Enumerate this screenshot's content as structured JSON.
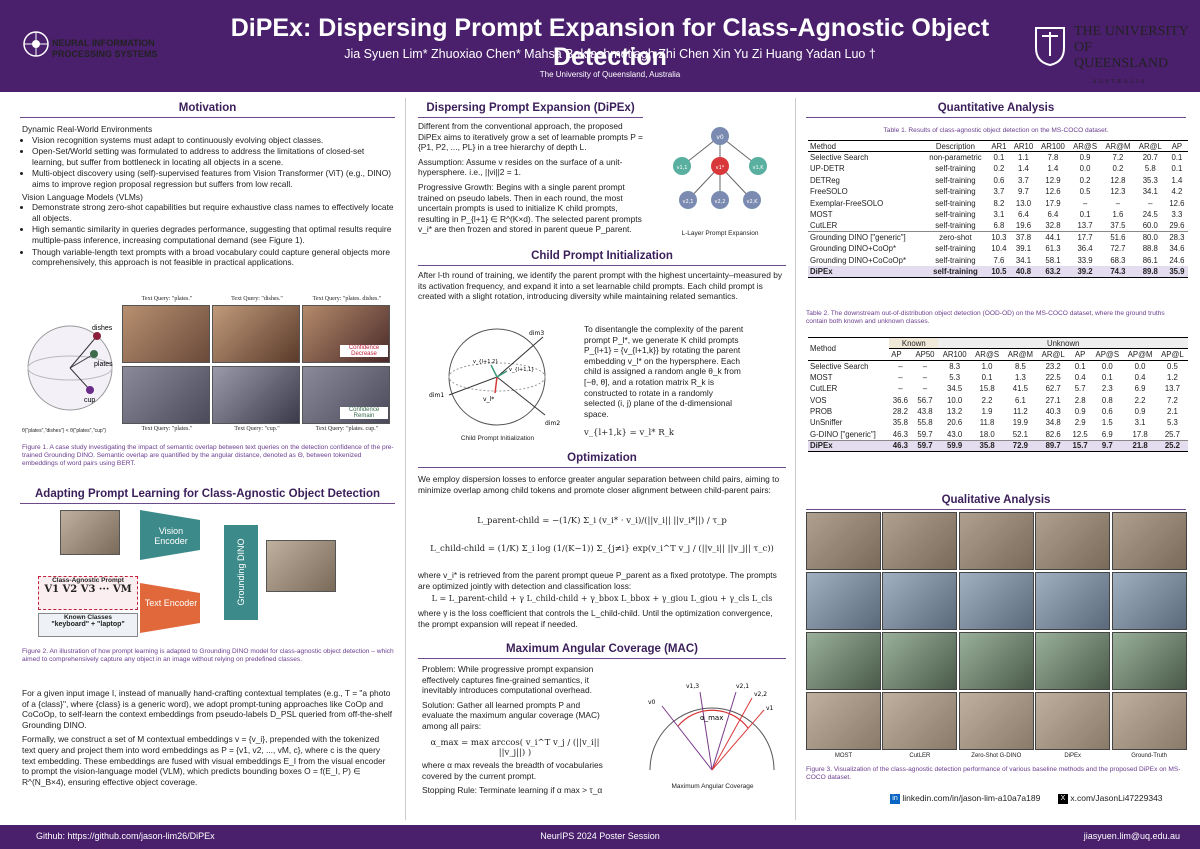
{
  "header": {
    "title": "DiPEx: Dispersing Prompt Expansion for Class-Agnostic Object Detection",
    "authors": "Jia Syuen Lim*  Zhuoxiao Chen*  Mahsa Baktashmotlagh  Zhi Chen  Xin Yu  Zi Huang  Yadan Luo †",
    "affiliation": "The University of Queensland, Australia",
    "logo_left": "NEURAL INFORMATION PROCESSING SYSTEMS",
    "logo_right": "THE UNIVERSITY OF QUEENSLAND",
    "logo_right_sub": "AUSTRALIA"
  },
  "motivation": {
    "title": "Motivation",
    "h1": "Dynamic Real-World Environments",
    "b1": "Vision recognition systems must adapt to continuously evolving object classes.",
    "b2": "Open-Set/World setting was formulated to address to address the limitations of closed-set learning, but suffer from bottleneck in locating all objects in a scene.",
    "b3": "Multi-object discovery using (self)-supervised features from Vision Transformer (ViT) (e.g., DINO) aims to improve region proposal regression but suffers from low recall.",
    "h2": "Vision Language Models (VLMs)",
    "b4": "Demonstrate strong zero-shot capabilities but require exhaustive class names to effectively locate all objects.",
    "b5": "High semantic similarity in queries degrades performance, suggesting that optimal results require multiple-pass inference, increasing computational demand (see Figure 1).",
    "b6": "Though variable-length text prompts with a broad vocabulary could capture general objects more comprehensively, this approach is not feasible in practical applications.",
    "fig_dishes": "dishes",
    "fig_plates": "plates",
    "fig_cup": "cup",
    "fig_theta": "θ(\"plates\",\"dishes\") < θ(\"plates\",\"cup\")",
    "q1": "Text Query: \"plates.\"",
    "q2": "Text Query: \"dishes.\"",
    "q3": "Text Query: \"plates. dishes.\"",
    "q4": "Text Query: \"plates.\"",
    "q5": "Text Query: \"cup.\"",
    "q6": "Text Query: \"plates. cup.\"",
    "conf_dec": "Confidence Decrease",
    "conf_rem": "Confidence Remain",
    "caption": "Figure 1. A case study investigating the impact of semantic overlap between text queries on the detection confidence of the pre-trained Grounding DINO. Semantic overlap are quantified by the angular distance, denoted as Θ, between tokenized embeddings of word pairs using BERT."
  },
  "adapting": {
    "title": "Adapting Prompt Learning for Class-Agnostic Object Detection",
    "vision_encoder": "Vision Encoder",
    "text_encoder": "Text Encoder",
    "grounding": "Grounding DINO",
    "cap_title": "Class-Agnostic Prompt",
    "tokens": "V1  V2  V3  ···  VM",
    "known": "Known Classes",
    "known_ex": "\"keyboard\" + \"laptop\"",
    "caption": "Figure 2. An illustration of how prompt learning is adapted to Grounding DINO model for class-agnostic object detection – which aimed to comprehensively capture any object in an image without relying on predefined classes.",
    "p1": "For a given input image I, instead of manually hand-crafting contextual templates (e.g., T = \"a photo of a {class}\", where {class} is a generic word), we adopt prompt-tuning approaches like CoOp and CoCoOp, to self-learn the context embeddings from pseudo-labels D_PSL queried from off-the-shelf Grounding DINO.",
    "p2": "Formally, we construct a set of M contextual embeddings v = {v_i}, prepended with the tokenized text query and project them into word embeddings as P = {v1, v2, ..., vM, c}, where c is the query text embedding. These embeddings are fused with visual embeddings E_I from the visual encoder to prompt the vision-language model (VLM), which predicts bounding boxes O = f(E_I, P) ∈ R^(N_B×4), ensuring effective object coverage."
  },
  "dispersing": {
    "title": "Dispersing Prompt Expansion (DiPEx)",
    "p1": "Different from the conventional approach, the proposed DiPEx aims to iteratively grow a set of learnable prompts P = {P1, P2, ..., PL} in a tree hierarchy of depth L.",
    "p2": "Assumption: Assume v resides on the surface of a unit-hypersphere. i.e., ||vi||2 = 1.",
    "p3": "Progressive Growth: Begins with a single parent prompt trained on pseudo labels. Then in each round, the most uncertain prompts is used to initialize K child prompts, resulting in P_{l+1} ∈ R^(K×d). The selected parent prompts v_i* are then frozen and stored in parent queue P_parent.",
    "fig_caption": "L-Layer Prompt Expansion",
    "n0": "v0",
    "n1": "v1,1",
    "n2": "v1*",
    "n3": "v1,K",
    "n4": "v2,1",
    "n5": "v2,2",
    "n6": "v2,K"
  },
  "child": {
    "title": "Child Prompt Initialization",
    "p1": "After l-th round of training, we identify the parent prompt with the highest uncertainty–measured by its activation frequency, and expand it into a set learnable child prompts. Each child prompt is created with a slight rotation, introducing diversity while maintaining related semantics.",
    "p2": "To disentangle the complexity of the parent prompt P_l*, we generate K child prompts P_{l+1} = {v_{l+1,k}} by rotating the parent embedding v_l* on the hypersphere. Each child is assigned a random angle θ_k from [−θ, θ], and a rotation matrix R_k is constructed to rotate in a randomly selected (i, j) plane of the d-dimensional space.",
    "eq": "v_{l+1,k} = v_l* R_k",
    "fig_caption": "Child Prompt Initialization",
    "dim1": "dim1",
    "dim2": "dim2",
    "dim3": "dim3",
    "vi": "v_l*",
    "vc1": "v_{l+1,2}",
    "vc2": "v_{l+1,1}"
  },
  "optimization": {
    "title": "Optimization",
    "p1": "We employ dispersion losses to enforce greater angular separation between child pairs, aiming to minimize overlap among child tokens and promote closer alignment between child-parent pairs:",
    "eq1": "L_parent-child = −(1/K) Σ_i (v_i* · v_i)/(||v_i|| ||v_i*||) / τ_p",
    "eq2": "L_child-child = (1/K) Σ_i log (1/(K−1)) Σ_{j≠i} exp(v_i^T v_j / (||v_i|| ||v_j|| τ_c))",
    "p2": "where v_i* is retrieved from the parent prompt queue P_parent as a fixed prototype. The prompts are optimized jointly with detection and classification loss:",
    "eq3": "L = L_parent-child + γ L_child-child + γ_bbox L_bbox + γ_giou L_giou + γ_cls L_cls",
    "p3": "where γ is the loss coefficient that controls the L_child-child. Until the optimization convergence, the prompt expansion will repeat if needed."
  },
  "mac": {
    "title": "Maximum Angular Coverage (MAC)",
    "p1": "Problem: While progressive prompt expansion effectively captures fine-grained semantics, it inevitably introduces computational overhead.",
    "p2": "Solution: Gather all learned prompts P and evaluate the maximum angular coverage (MAC) among all pairs:",
    "eq": "α_max = max arccos( v_i^T v_j / (||v_i|| ||v_j||) )",
    "p3": "where α max reveals the breadth of vocabularies covered by the current prompt.",
    "p4": "Stopping Rule: Terminate learning if α max > τ_α",
    "fig_caption": "Maximum Angular Coverage",
    "amax": "α_max",
    "v0": "v0",
    "v13": "v1,3",
    "v21": "v2,1",
    "v22": "v2,2",
    "v1": "v1"
  },
  "quant": {
    "title": "Quantitative Analysis",
    "t1_caption": "Table 1. Results of class-agnostic object detection on the MS-COCO dataset.",
    "t1_headers": [
      "Method",
      "Description",
      "AR1",
      "AR10",
      "AR100",
      "AR@S",
      "AR@M",
      "AR@L",
      "AP"
    ],
    "t1_rows": [
      [
        "Selective Search",
        "non-parametric",
        "0.1",
        "1.1",
        "7.8",
        "0.9",
        "7.2",
        "20.7",
        "0.1"
      ],
      [
        "UP-DETR",
        "self-training",
        "0.2",
        "1.4",
        "1.4",
        "0.0",
        "0.2",
        "5.8",
        "0.1"
      ],
      [
        "DETReg",
        "self-training",
        "0.6",
        "3.7",
        "12.9",
        "0.2",
        "12.8",
        "35.3",
        "1.4"
      ],
      [
        "FreeSOLO",
        "self-training",
        "3.7",
        "9.7",
        "12.6",
        "0.5",
        "12.3",
        "34.1",
        "4.2"
      ],
      [
        "Exemplar-FreeSOLO",
        "self-training",
        "8.2",
        "13.0",
        "17.9",
        "–",
        "–",
        "–",
        "12.6"
      ],
      [
        "MOST",
        "self-training",
        "3.1",
        "6.4",
        "6.4",
        "0.1",
        "1.6",
        "24.5",
        "3.3"
      ],
      [
        "CutLER",
        "self-training",
        "6.8",
        "19.6",
        "32.8",
        "13.7",
        "37.5",
        "60.0",
        "29.6"
      ],
      [
        "Grounding DINO [\"generic\"]",
        "zero-shot",
        "10.3",
        "37.8",
        "44.1",
        "17.7",
        "51.6",
        "80.0",
        "28.3"
      ],
      [
        "Grounding DINO+CoOp*",
        "self-training",
        "10.4",
        "39.1",
        "61.3",
        "36.4",
        "72.7",
        "88.8",
        "34.6"
      ],
      [
        "Grounding DINO+CoCoOp*",
        "self-training",
        "7.6",
        "34.1",
        "58.1",
        "33.9",
        "68.3",
        "86.1",
        "24.6"
      ],
      [
        "DiPEx",
        "self-training",
        "10.5",
        "40.8",
        "63.2",
        "39.2",
        "74.3",
        "89.8",
        "35.9"
      ]
    ],
    "t2_caption": "Table 2. The downstream out-of-distribution object detection (OOD-OD) on the MS-COCO dataset, where the ground truths contain both known and unknown classes.",
    "t2_group_known": "Known",
    "t2_group_unknown": "Unknown",
    "t2_headers": [
      "Method",
      "AP",
      "AP50",
      "AR100",
      "AR@S",
      "AR@M",
      "AR@L",
      "AP",
      "AP@S",
      "AP@M",
      "AP@L"
    ],
    "t2_rows": [
      [
        "Selective Search",
        "–",
        "–",
        "8.3",
        "1.0",
        "8.5",
        "23.2",
        "0.1",
        "0.0",
        "0.0",
        "0.5"
      ],
      [
        "MOST",
        "–",
        "–",
        "5.3",
        "0.1",
        "1.3",
        "22.5",
        "0.4",
        "0.1",
        "0.4",
        "1.2"
      ],
      [
        "CutLER",
        "–",
        "–",
        "34.5",
        "15.8",
        "41.5",
        "62.7",
        "5.7",
        "2.3",
        "6.9",
        "13.7"
      ],
      [
        "VOS",
        "36.6",
        "56.7",
        "10.0",
        "2.2",
        "6.1",
        "27.1",
        "2.8",
        "0.8",
        "2.2",
        "7.2"
      ],
      [
        "PROB",
        "28.2",
        "43.8",
        "13.2",
        "1.9",
        "11.2",
        "40.3",
        "0.9",
        "0.6",
        "0.9",
        "2.1"
      ],
      [
        "UnSniffer",
        "35.8",
        "55.8",
        "20.6",
        "11.8",
        "19.9",
        "34.8",
        "2.9",
        "1.5",
        "3.1",
        "5.3"
      ],
      [
        "G-DINO [\"generic\"]",
        "46.3",
        "59.7",
        "43.0",
        "18.0",
        "52.1",
        "82.6",
        "12.5",
        "6.9",
        "17.8",
        "25.7"
      ],
      [
        "DiPEx",
        "46.3",
        "59.7",
        "59.9",
        "35.8",
        "72.9",
        "89.7",
        "15.7",
        "9.7",
        "21.8",
        "25.2"
      ]
    ]
  },
  "qual": {
    "title": "Qualitative Analysis",
    "labels": [
      "MOST",
      "CutLER",
      "Zero-Shot G-DINO",
      "DiPEx",
      "Ground-Truth"
    ],
    "caption": "Figure 3. Visualization of the class-agnostic detection performance of various baseline methods and the proposed DiPEx on MS-COCO dataset.",
    "linkedin": "linkedin.com/in/jason-lim-a10a7a189",
    "twitter": "x.com/JasonLi47229343"
  },
  "footer": {
    "github": "Github: https://github.com/jason-lim26/DiPEx",
    "session": "NeurIPS 2024 Poster Session",
    "email": "jiasyuen.lim@uq.edu.au"
  }
}
